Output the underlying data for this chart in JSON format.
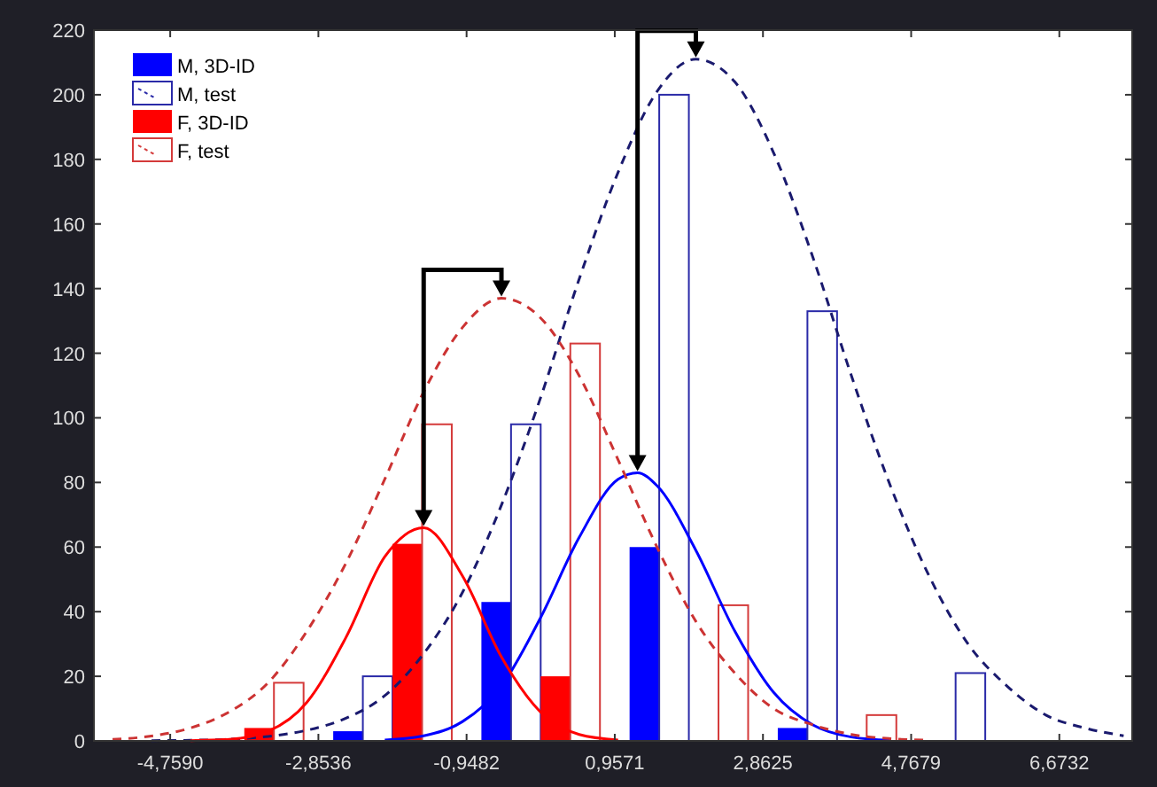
{
  "chart_data": {
    "type": "histogram",
    "bins": [
      -4.759,
      -2.8536,
      -0.9482,
      0.9571,
      2.8625,
      4.7679,
      6.6732
    ],
    "xlim": [
      -5.74,
      7.61
    ],
    "ylim": [
      0,
      220
    ],
    "yticks": [
      0,
      20,
      40,
      60,
      80,
      100,
      120,
      140,
      160,
      180,
      200,
      220
    ],
    "xticks": [
      {
        "value": -4.759,
        "label": "-4,7590"
      },
      {
        "value": -2.8536,
        "label": "-2,8536"
      },
      {
        "value": -0.9482,
        "label": "-0,9482"
      },
      {
        "value": 0.9571,
        "label": "0,9571"
      },
      {
        "value": 2.8625,
        "label": "2,8625"
      },
      {
        "value": 4.7679,
        "label": "4,7679"
      },
      {
        "value": 6.6732,
        "label": "6,6732"
      }
    ],
    "legend": "top left",
    "series": [
      {
        "name": "M, 3D-ID",
        "color": "#0000ff",
        "values": [
          0,
          3,
          43,
          60,
          4,
          0
        ]
      },
      {
        "name": "M, test",
        "color": "#2a2aa8",
        "line_style": "solid",
        "values": [
          0,
          20,
          98,
          200,
          133,
          21
        ]
      },
      {
        "name": "F, 3D-ID",
        "color": "#ff0000",
        "values": [
          4,
          61,
          20,
          0,
          0,
          0
        ]
      },
      {
        "name": "F, test",
        "color": "#d43a3a",
        "line_style": "solid",
        "values": [
          18,
          98,
          123,
          42,
          8,
          0
        ]
      },
      {
        "type": "line",
        "color": "#0000ff",
        "line_style": "solid",
        "x": [
          -2,
          -1.5,
          -1,
          -0.5,
          0,
          0.5,
          1,
          1.25,
          1.5,
          2,
          2.5,
          3,
          3.5,
          4,
          4.5
        ],
        "values": [
          0.3,
          1.6,
          6,
          17,
          38,
          63,
          81,
          83,
          79,
          59,
          34,
          15,
          5,
          1.2,
          0.2
        ]
      },
      {
        "type": "line",
        "color": "#1a1a6e",
        "line_style": "dashed",
        "x": [
          -5,
          -4.5,
          -4,
          -3.5,
          -3,
          -2.5,
          -2,
          -1.5,
          -1,
          -0.5,
          0,
          0.5,
          1,
          1.5,
          2,
          2.5,
          3,
          3.5,
          4,
          4.5,
          5,
          5.5,
          6,
          6.5,
          7,
          7.5
        ],
        "values": [
          0.1,
          0.2,
          0.5,
          1.4,
          3.3,
          7,
          14,
          27,
          46,
          73,
          106,
          143,
          176,
          201,
          211,
          204,
          182,
          150,
          113,
          79,
          51,
          30,
          17,
          8,
          4,
          1.6
        ]
      },
      {
        "type": "line",
        "color": "#ff0000",
        "line_style": "solid",
        "x": [
          -4.5,
          -4,
          -3.5,
          -3,
          -2.5,
          -2,
          -1.5,
          -1,
          -0.5,
          0,
          0.5,
          1
        ],
        "values": [
          0.1,
          0.5,
          3,
          12,
          32,
          57,
          66,
          51,
          26,
          9,
          2,
          0.3
        ]
      },
      {
        "type": "line",
        "color": "#cc3333",
        "line_style": "dashed",
        "x": [
          -5.5,
          -5,
          -4.5,
          -4,
          -3.5,
          -3,
          -2.5,
          -2,
          -1.5,
          -1,
          -0.5,
          0,
          0.5,
          1,
          1.5,
          2,
          2.5,
          3,
          3.5,
          4,
          4.5,
          5
        ],
        "values": [
          0.5,
          1.5,
          4,
          9,
          18,
          34,
          55,
          81,
          108,
          128,
          137,
          131,
          113,
          87,
          60,
          37,
          21,
          10,
          5,
          2,
          0.7,
          0.2
        ]
      }
    ]
  }
}
